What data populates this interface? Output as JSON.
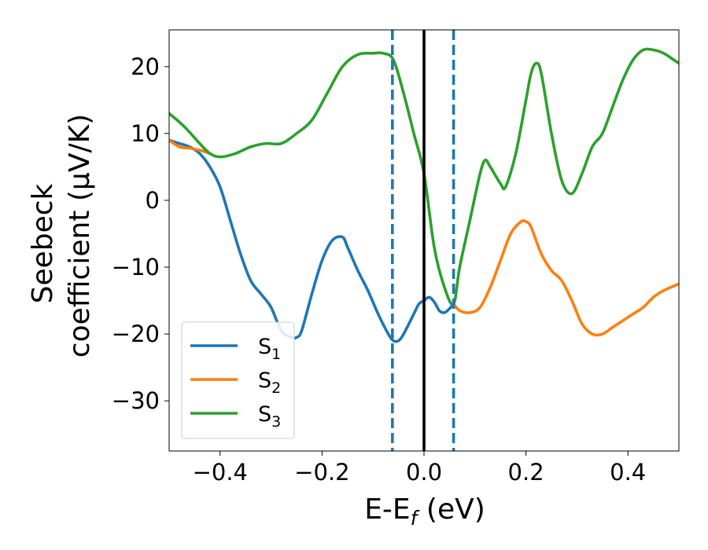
{
  "chart_data": {
    "type": "line",
    "xlabel_main": "E-E",
    "xlabel_sub": "f",
    "xlabel_unit": " (eV)",
    "ylabel_line1": "Seebeck",
    "ylabel_line2": "coefficient  (μV/K)",
    "xlim": [
      -0.5,
      0.5
    ],
    "ylim": [
      -37.5,
      25.5
    ],
    "xticks": [
      -0.4,
      -0.2,
      0.0,
      0.2,
      0.4
    ],
    "xtick_labels": [
      "−0.4",
      "−0.2",
      "0.0",
      "0.2",
      "0.4"
    ],
    "yticks": [
      -30,
      -20,
      -10,
      0,
      10,
      20
    ],
    "ytick_labels": [
      "−30",
      "−20",
      "−10",
      "0",
      "10",
      "20"
    ],
    "grid": false,
    "legend_position": "lower-left",
    "vlines": [
      {
        "x": -0.062,
        "style": "dashed",
        "color": "#1f77b4"
      },
      {
        "x": 0.0,
        "style": "solid",
        "color": "#000000"
      },
      {
        "x": 0.058,
        "style": "dashed",
        "color": "#1f77b4"
      }
    ],
    "series": [
      {
        "name": "S",
        "name_sub": "1",
        "color": "#1f77b4",
        "x": [
          -0.5,
          -0.48,
          -0.46,
          -0.44,
          -0.42,
          -0.4,
          -0.38,
          -0.36,
          -0.34,
          -0.32,
          -0.3,
          -0.28,
          -0.26,
          -0.25,
          -0.24,
          -0.22,
          -0.2,
          -0.18,
          -0.16,
          -0.15,
          -0.13,
          -0.11,
          -0.09,
          -0.07,
          -0.06,
          -0.05,
          -0.04,
          -0.02,
          -0.01,
          0.0,
          0.01,
          0.02,
          0.03,
          0.04,
          0.05,
          0.058
        ],
        "y": [
          9,
          8.5,
          8,
          7,
          5,
          2,
          -3,
          -8,
          -12,
          -14,
          -16,
          -19.5,
          -20.5,
          -20.5,
          -19.5,
          -14,
          -9,
          -6,
          -5.5,
          -7,
          -10.5,
          -13.5,
          -17,
          -20,
          -21,
          -21,
          -20,
          -17,
          -15.5,
          -15,
          -14.5,
          -15.2,
          -16.5,
          -16.8,
          -16.2,
          -15.5
        ]
      },
      {
        "name": "S",
        "name_sub": "2",
        "color": "#ff7f0e",
        "x": [
          -0.5,
          -0.48,
          -0.46,
          -0.44,
          -0.42,
          0.058,
          0.07,
          0.09,
          0.11,
          0.13,
          0.15,
          0.17,
          0.19,
          0.2,
          0.21,
          0.23,
          0.25,
          0.27,
          0.29,
          0.31,
          0.33,
          0.35,
          0.37,
          0.39,
          0.41,
          0.43,
          0.45,
          0.47,
          0.5
        ],
        "y": [
          9,
          8,
          7.8,
          7.5,
          7,
          -15.5,
          -16.5,
          -16.8,
          -16,
          -13,
          -9,
          -5,
          -3.2,
          -3.2,
          -4,
          -8,
          -10.5,
          -12,
          -15,
          -18.5,
          -20,
          -20,
          -19,
          -18,
          -17,
          -16,
          -14.5,
          -13.5,
          -12.5
        ]
      },
      {
        "name": "S",
        "name_sub": "3",
        "color": "#2ca02c",
        "x": [
          -0.5,
          -0.47,
          -0.44,
          -0.42,
          -0.4,
          -0.37,
          -0.34,
          -0.31,
          -0.28,
          -0.25,
          -0.22,
          -0.19,
          -0.16,
          -0.13,
          -0.1,
          -0.08,
          -0.06,
          -0.04,
          -0.02,
          0.0,
          0.02,
          0.04,
          0.058,
          0.07,
          0.09,
          0.11,
          0.12,
          0.13,
          0.15,
          0.16,
          0.18,
          0.2,
          0.21,
          0.22,
          0.23,
          0.25,
          0.27,
          0.29,
          0.31,
          0.33,
          0.35,
          0.37,
          0.39,
          0.41,
          0.43,
          0.45,
          0.47,
          0.49,
          0.5
        ],
        "y": [
          13,
          11,
          8.5,
          7,
          6.5,
          7,
          8,
          8.5,
          8.5,
          10,
          12,
          16,
          20,
          21.8,
          22,
          22,
          21,
          16,
          10,
          4,
          -7,
          -13,
          -15.5,
          -10,
          -3,
          4,
          6,
          5,
          2.5,
          2,
          7,
          15,
          19,
          20.5,
          19,
          10,
          3,
          1,
          4,
          8,
          10,
          14,
          18,
          21,
          22.5,
          22.5,
          22,
          21,
          20.5
        ]
      }
    ]
  }
}
